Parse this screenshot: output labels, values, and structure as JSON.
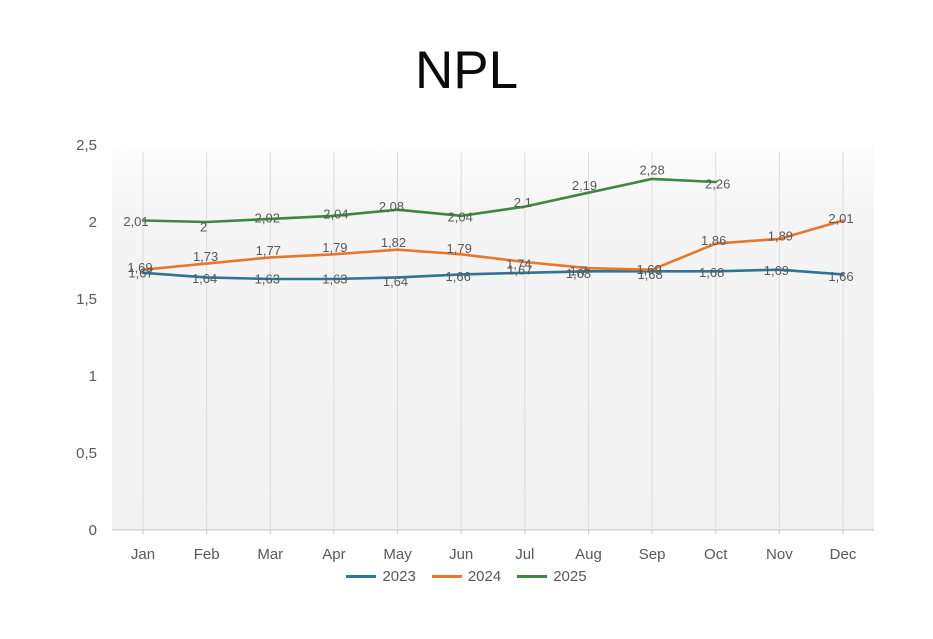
{
  "chart_data": {
    "type": "line",
    "title": "NPL",
    "categories": [
      "Jan",
      "Feb",
      "Mar",
      "Apr",
      "May",
      "Jun",
      "Jul",
      "Aug",
      "Sep",
      "Oct",
      "Nov",
      "Dec"
    ],
    "y_ticks": [
      "0",
      "0,5",
      "1",
      "1,5",
      "2",
      "2,5"
    ],
    "ylim": [
      0,
      2.5
    ],
    "grid": "vertical-only",
    "legend_position": "bottom-center",
    "axis_label_color": "#595959",
    "data_label_color": "#595959",
    "plot_bg_color": "#f3f3f3",
    "gridline_color": "#dcdcdc",
    "series": [
      {
        "name": "2023",
        "color": "#2e7598",
        "values": [
          1.67,
          1.64,
          1.63,
          1.63,
          1.64,
          1.66,
          1.67,
          1.68,
          1.68,
          1.68,
          1.69,
          1.66
        ],
        "labels": [
          "1,67",
          "1,64",
          "1,63",
          "1,63",
          "1,64",
          "1,66",
          "1,67",
          "1,68",
          "1,68",
          "1,68",
          "1,69",
          "1,66"
        ],
        "label_offsets": [
          [
            -2,
            0
          ],
          [
            -2,
            1
          ],
          [
            -3,
            0
          ],
          [
            1,
            0
          ],
          [
            -2,
            4
          ],
          [
            -3,
            2
          ],
          [
            -5,
            -3
          ],
          [
            -10,
            2
          ],
          [
            -2,
            3
          ],
          [
            -4,
            1
          ],
          [
            -3,
            1
          ],
          [
            -2,
            2
          ]
        ]
      },
      {
        "name": "2024",
        "color": "#e8772e",
        "values": [
          1.69,
          1.73,
          1.77,
          1.79,
          1.82,
          1.79,
          1.74,
          1.7,
          1.69,
          1.86,
          1.89,
          2.01
        ],
        "labels": [
          "1,69",
          "1,73",
          "1,77",
          "1,79",
          "1,82",
          "1,79",
          "1,74",
          "1,7",
          "1,69",
          "1,86",
          "1,89",
          "2,01"
        ],
        "label_offsets": [
          [
            -3,
            -2
          ],
          [
            -1,
            -7
          ],
          [
            -2,
            -7
          ],
          [
            1,
            -7
          ],
          [
            -4,
            -7
          ],
          [
            -2,
            -6
          ],
          [
            -6,
            2
          ],
          [
            -10,
            3
          ],
          [
            -3,
            0
          ],
          [
            -2,
            -3
          ],
          [
            1,
            -3
          ],
          [
            -2,
            -2
          ]
        ]
      },
      {
        "name": "2025",
        "color": "#3c8843",
        "values": [
          2.01,
          2.0,
          2.02,
          2.04,
          2.08,
          2.04,
          2.1,
          2.19,
          2.28,
          2.26,
          null,
          null
        ],
        "labels": [
          "2,01",
          "2",
          "2,02",
          "2,04",
          "2,08",
          "2,04",
          "2,1",
          "2,19",
          "2,28",
          "2,26",
          null,
          null
        ],
        "label_offsets": [
          [
            -7,
            1
          ],
          [
            -3,
            5
          ],
          [
            -3,
            -1
          ],
          [
            2,
            -2
          ],
          [
            -6,
            -3
          ],
          [
            -1,
            1
          ],
          [
            -2,
            -4
          ],
          [
            -4,
            -7
          ],
          [
            0,
            -9
          ],
          [
            2,
            2
          ],
          null,
          null
        ]
      }
    ]
  }
}
